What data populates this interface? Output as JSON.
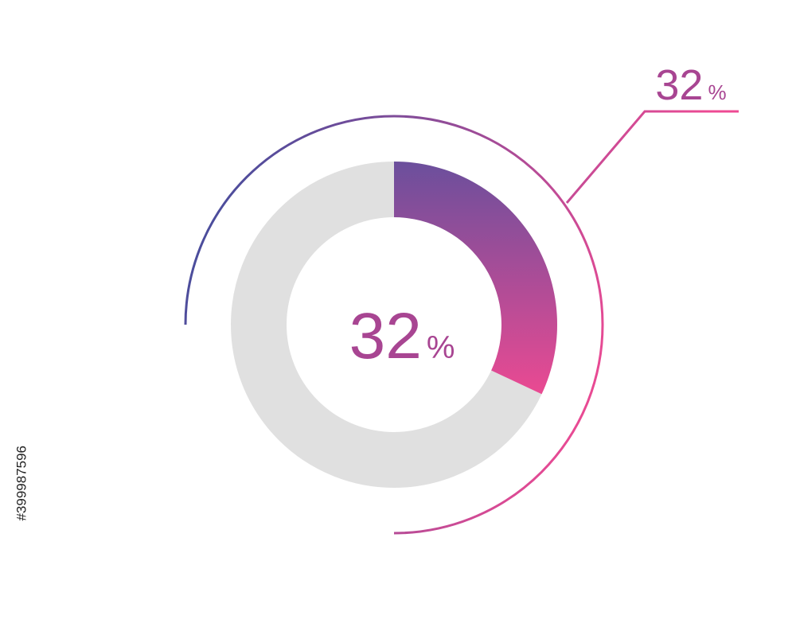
{
  "chart_data": {
    "type": "donut",
    "values": [
      32
    ],
    "unit": "%",
    "colors": [
      "#6b4f9c",
      "#ea4a92"
    ],
    "track_color": "#e0e0e0",
    "text_color": "#a84592",
    "arc_colors": [
      "#454d9c",
      "#ee4a93"
    ]
  },
  "watermark_id": "#399987596"
}
